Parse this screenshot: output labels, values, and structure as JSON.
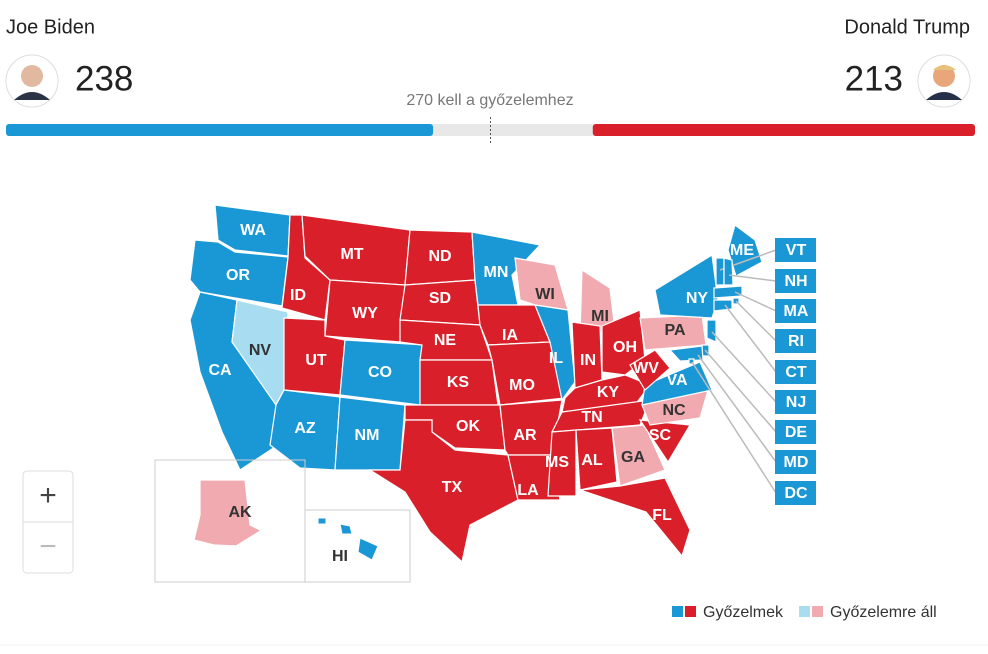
{
  "candidates": [
    {
      "name": "Joe Biden",
      "votes": 238,
      "color": "#1a98d5"
    },
    {
      "name": "Donald Trump",
      "votes": 213,
      "color": "#d9202a"
    }
  ],
  "threshold": {
    "value": 270,
    "label": "kell a győzelemhez"
  },
  "states": [
    {
      "label": "WA",
      "color": "#1a98d5",
      "label_color": "#ffffff"
    },
    {
      "label": "OR",
      "color": "#1a98d5",
      "label_color": "#ffffff"
    },
    {
      "label": "CA",
      "color": "#1a98d5",
      "label_color": "#ffffff"
    },
    {
      "label": "NV",
      "color": "#a8dcf0",
      "label_color": "#333333"
    },
    {
      "label": "ID",
      "color": "#d9202a",
      "label_color": "#ffffff"
    },
    {
      "label": "MT",
      "color": "#d9202a",
      "label_color": "#ffffff"
    },
    {
      "label": "WY",
      "color": "#d9202a",
      "label_color": "#ffffff"
    },
    {
      "label": "UT",
      "color": "#d9202a",
      "label_color": "#ffffff"
    },
    {
      "label": "CO",
      "color": "#1a98d5",
      "label_color": "#ffffff"
    },
    {
      "label": "AZ",
      "color": "#1a98d5",
      "label_color": "#ffffff"
    },
    {
      "label": "NM",
      "color": "#1a98d5",
      "label_color": "#ffffff"
    },
    {
      "label": "ND",
      "color": "#d9202a",
      "label_color": "#ffffff"
    },
    {
      "label": "SD",
      "color": "#d9202a",
      "label_color": "#ffffff"
    },
    {
      "label": "NE",
      "color": "#d9202a",
      "label_color": "#ffffff"
    },
    {
      "label": "KS",
      "color": "#d9202a",
      "label_color": "#ffffff"
    },
    {
      "label": "OK",
      "color": "#d9202a",
      "label_color": "#ffffff"
    },
    {
      "label": "TX",
      "color": "#d9202a",
      "label_color": "#ffffff"
    },
    {
      "label": "MN",
      "color": "#1a98d5",
      "label_color": "#ffffff"
    },
    {
      "label": "IA",
      "color": "#d9202a",
      "label_color": "#ffffff"
    },
    {
      "label": "MO",
      "color": "#d9202a",
      "label_color": "#ffffff"
    },
    {
      "label": "AR",
      "color": "#d9202a",
      "label_color": "#ffffff"
    },
    {
      "label": "LA",
      "color": "#d9202a",
      "label_color": "#ffffff"
    },
    {
      "label": "WI",
      "color": "#f0aab0",
      "label_color": "#333333"
    },
    {
      "label": "IL",
      "color": "#1a98d5",
      "label_color": "#ffffff"
    },
    {
      "label": "MI",
      "color": "#f0aab0",
      "label_color": "#333333"
    },
    {
      "label": "IN",
      "color": "#d9202a",
      "label_color": "#ffffff"
    },
    {
      "label": "OH",
      "color": "#d9202a",
      "label_color": "#ffffff"
    },
    {
      "label": "KY",
      "color": "#d9202a",
      "label_color": "#ffffff"
    },
    {
      "label": "TN",
      "color": "#d9202a",
      "label_color": "#ffffff"
    },
    {
      "label": "MS",
      "color": "#d9202a",
      "label_color": "#ffffff"
    },
    {
      "label": "AL",
      "color": "#d9202a",
      "label_color": "#ffffff"
    },
    {
      "label": "GA",
      "color": "#f0aab0",
      "label_color": "#333333"
    },
    {
      "label": "FL",
      "color": "#d9202a",
      "label_color": "#ffffff"
    },
    {
      "label": "SC",
      "color": "#d9202a",
      "label_color": "#ffffff"
    },
    {
      "label": "NC",
      "color": "#f0aab0",
      "label_color": "#333333"
    },
    {
      "label": "VA",
      "color": "#1a98d5",
      "label_color": "#ffffff"
    },
    {
      "label": "WV",
      "color": "#d9202a",
      "label_color": "#ffffff"
    },
    {
      "label": "PA",
      "color": "#f0aab0",
      "label_color": "#333333"
    },
    {
      "label": "NY",
      "color": "#1a98d5",
      "label_color": "#ffffff"
    },
    {
      "label": "ME",
      "color": "#1a98d5",
      "label_color": "#ffffff"
    },
    {
      "label": "VT",
      "color": "#1a98d5",
      "label_color": "#ffffff"
    },
    {
      "label": "NH",
      "color": "#1a98d5",
      "label_color": "#ffffff"
    },
    {
      "label": "MA",
      "color": "#1a98d5",
      "label_color": "#ffffff"
    },
    {
      "label": "RI",
      "color": "#1a98d5",
      "label_color": "#ffffff"
    },
    {
      "label": "CT",
      "color": "#1a98d5",
      "label_color": "#ffffff"
    },
    {
      "label": "NJ",
      "color": "#1a98d5",
      "label_color": "#ffffff"
    },
    {
      "label": "DE",
      "color": "#1a98d5",
      "label_color": "#ffffff"
    },
    {
      "label": "MD",
      "color": "#1a98d5",
      "label_color": "#ffffff"
    },
    {
      "label": "DC",
      "color": "#1a98d5",
      "label_color": "#ffffff"
    },
    {
      "label": "AK",
      "color": "#f0aab0",
      "label_color": "#333333"
    },
    {
      "label": "HI",
      "color": "#1a98d5",
      "label_color": "#333333"
    }
  ],
  "zoom": {
    "in": "+",
    "out": "−"
  },
  "legend": [
    {
      "label": "Győzelmek",
      "colors": [
        "#1a98d5",
        "#d9202a"
      ]
    },
    {
      "label": "Győzelemre áll",
      "colors": [
        "#a8dcf0",
        "#f0aab0"
      ]
    }
  ]
}
